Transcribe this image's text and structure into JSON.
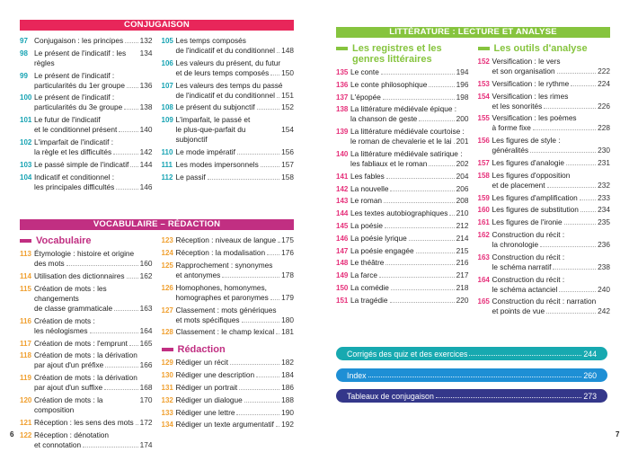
{
  "colors": {
    "conj": "#e8265a",
    "conj_num": "#17a3b3",
    "voc": "#c12f82",
    "voc_num": "#f0a030",
    "lit": "#86c43e",
    "lit_num": "#e6307a",
    "corriges": "#17a9b0",
    "index": "#1e8fd5",
    "tableaux": "#34378a"
  },
  "conjugaison": {
    "title": "CONJUGAISON",
    "left": [
      {
        "n": "97",
        "lines": [
          "Conjugaison : les principes"
        ],
        "p": "132"
      },
      {
        "n": "98",
        "lines": [
          "Le présent de l'indicatif : les règles"
        ],
        "p": "134"
      },
      {
        "n": "99",
        "lines": [
          "Le présent de l'indicatif :",
          "particularités du 1er groupe"
        ],
        "p": "136"
      },
      {
        "n": "100",
        "lines": [
          "Le présent de l'indicatif :",
          "particularités du 3e groupe"
        ],
        "p": "138"
      },
      {
        "n": "101",
        "lines": [
          "Le futur de l'indicatif",
          "et le conditionnel présent"
        ],
        "p": "140"
      },
      {
        "n": "102",
        "lines": [
          "L'imparfait de l'indicatif :",
          "la règle et les difficultés"
        ],
        "p": "142"
      },
      {
        "n": "103",
        "lines": [
          "Le passé simple de l'indicatif"
        ],
        "p": "144"
      },
      {
        "n": "104",
        "lines": [
          "Indicatif et conditionnel :",
          "les principales difficultés"
        ],
        "p": "146"
      }
    ],
    "right": [
      {
        "n": "105",
        "lines": [
          "Les temps composés",
          "de l'indicatif et du conditionnel"
        ],
        "p": "148"
      },
      {
        "n": "106",
        "lines": [
          "Les valeurs du présent, du futur",
          "et de leurs temps composés"
        ],
        "p": "150"
      },
      {
        "n": "107",
        "lines": [
          "Les valeurs des temps du passé",
          "de l'indicatif et du conditionnel"
        ],
        "p": "151"
      },
      {
        "n": "108",
        "lines": [
          "Le présent du subjonctif"
        ],
        "p": "152"
      },
      {
        "n": "109",
        "lines": [
          "L'imparfait, le passé et",
          "le plus-que-parfait du subjonctif"
        ],
        "p": "154"
      },
      {
        "n": "110",
        "lines": [
          "Le mode impératif"
        ],
        "p": "156"
      },
      {
        "n": "111",
        "lines": [
          "Les modes impersonnels"
        ],
        "p": "157"
      },
      {
        "n": "112",
        "lines": [
          "Le passif"
        ],
        "p": "158"
      }
    ]
  },
  "vocabulaire": {
    "title": "VOCABULAIRE – RÉDACTION",
    "sub1": "Vocabulaire",
    "sub2": "Rédaction",
    "left": [
      {
        "n": "113",
        "lines": [
          "Étymologie : histoire et origine",
          "des mots"
        ],
        "p": "160"
      },
      {
        "n": "114",
        "lines": [
          "Utilisation des dictionnaires"
        ],
        "p": "162"
      },
      {
        "n": "115",
        "lines": [
          "Création de mots : les changements",
          "de classe grammaticale"
        ],
        "p": "163"
      },
      {
        "n": "116",
        "lines": [
          "Création de mots :",
          "les néologismes"
        ],
        "p": "164"
      },
      {
        "n": "117",
        "lines": [
          "Création de mots : l'emprunt"
        ],
        "p": "165"
      },
      {
        "n": "118",
        "lines": [
          "Création de mots : la dérivation",
          "par ajout d'un préfixe"
        ],
        "p": "166"
      },
      {
        "n": "119",
        "lines": [
          "Création de mots : la dérivation",
          "par ajout d'un suffixe"
        ],
        "p": "168"
      },
      {
        "n": "120",
        "lines": [
          "Création de mots : la composition"
        ],
        "p": "170"
      },
      {
        "n": "121",
        "lines": [
          "Réception : les sens des mots"
        ],
        "p": "172"
      },
      {
        "n": "122",
        "lines": [
          "Réception : dénotation",
          "et connotation"
        ],
        "p": "174"
      }
    ],
    "right": [
      {
        "n": "123",
        "lines": [
          "Réception : niveaux de langue"
        ],
        "p": "175"
      },
      {
        "n": "124",
        "lines": [
          "Réception : la modalisation"
        ],
        "p": "176"
      },
      {
        "n": "125",
        "lines": [
          "Rapprochement : synonymes",
          "et antonymes"
        ],
        "p": "178"
      },
      {
        "n": "126",
        "lines": [
          "Homophones, homonymes,",
          "homographes et paronymes"
        ],
        "p": "179"
      },
      {
        "n": "127",
        "lines": [
          "Classement : mots génériques",
          "et mots spécifiques"
        ],
        "p": "180"
      },
      {
        "n": "128",
        "lines": [
          "Classement : le champ lexical"
        ],
        "p": "181"
      }
    ],
    "redaction": [
      {
        "n": "129",
        "lines": [
          "Rédiger un récit"
        ],
        "p": "182"
      },
      {
        "n": "130",
        "lines": [
          "Rédiger une description"
        ],
        "p": "184"
      },
      {
        "n": "131",
        "lines": [
          "Rédiger un portrait"
        ],
        "p": "186"
      },
      {
        "n": "132",
        "lines": [
          "Rédiger un dialogue"
        ],
        "p": "188"
      },
      {
        "n": "133",
        "lines": [
          "Rédiger une lettre"
        ],
        "p": "190"
      },
      {
        "n": "134",
        "lines": [
          "Rédiger un texte argumentatif"
        ],
        "p": "192"
      }
    ]
  },
  "litterature": {
    "title": "LITTÉRATURE : LECTURE ET ANALYSE",
    "sub1": "Les registres et les genres littéraires",
    "sub2": "Les outils d'analyse",
    "left": [
      {
        "n": "135",
        "lines": [
          "Le conte"
        ],
        "p": "194"
      },
      {
        "n": "136",
        "lines": [
          "Le conte philosophique"
        ],
        "p": "196"
      },
      {
        "n": "137",
        "lines": [
          "L'épopée"
        ],
        "p": "198"
      },
      {
        "n": "138",
        "lines": [
          "La littérature médiévale épique :",
          "la chanson de geste"
        ],
        "p": "200"
      },
      {
        "n": "139",
        "lines": [
          "La littérature médiévale courtoise :",
          "le roman de chevalerie et le lai"
        ],
        "p": "201"
      },
      {
        "n": "140",
        "lines": [
          "La littérature médiévale satirique :",
          "les fabliaux et le roman"
        ],
        "p": "202"
      },
      {
        "n": "141",
        "lines": [
          "Les fables"
        ],
        "p": "204"
      },
      {
        "n": "142",
        "lines": [
          "La nouvelle"
        ],
        "p": "206"
      },
      {
        "n": "143",
        "lines": [
          "Le roman"
        ],
        "p": "208"
      },
      {
        "n": "144",
        "lines": [
          "Les textes autobiographiques"
        ],
        "p": "210"
      },
      {
        "n": "145",
        "lines": [
          "La poésie"
        ],
        "p": "212"
      },
      {
        "n": "146",
        "lines": [
          "La poésie lyrique"
        ],
        "p": "214"
      },
      {
        "n": "147",
        "lines": [
          "La poésie engagée"
        ],
        "p": "215"
      },
      {
        "n": "148",
        "lines": [
          "Le théâtre"
        ],
        "p": "216"
      },
      {
        "n": "149",
        "lines": [
          "La farce"
        ],
        "p": "217"
      },
      {
        "n": "150",
        "lines": [
          "La comédie"
        ],
        "p": "218"
      },
      {
        "n": "151",
        "lines": [
          "La tragédie"
        ],
        "p": "220"
      }
    ],
    "right": [
      {
        "n": "152",
        "lines": [
          "Versification : le vers",
          "et son organisation"
        ],
        "p": "222"
      },
      {
        "n": "153",
        "lines": [
          "Versification : le rythme"
        ],
        "p": "224"
      },
      {
        "n": "154",
        "lines": [
          "Versification : les rimes",
          "et les sonorités"
        ],
        "p": "226"
      },
      {
        "n": "155",
        "lines": [
          "Versification : les poèmes",
          "à forme fixe"
        ],
        "p": "228"
      },
      {
        "n": "156",
        "lines": [
          "Les figures de style :",
          "généralités"
        ],
        "p": "230"
      },
      {
        "n": "157",
        "lines": [
          "Les figures d'analogie"
        ],
        "p": "231"
      },
      {
        "n": "158",
        "lines": [
          "Les figures d'opposition",
          "et de placement"
        ],
        "p": "232"
      },
      {
        "n": "159",
        "lines": [
          "Les figures d'amplification"
        ],
        "p": "233"
      },
      {
        "n": "160",
        "lines": [
          "Les figures de substitution"
        ],
        "p": "234"
      },
      {
        "n": "161",
        "lines": [
          "Les figures de l'ironie"
        ],
        "p": "235"
      },
      {
        "n": "162",
        "lines": [
          "Construction du récit :",
          "la chronologie"
        ],
        "p": "236"
      },
      {
        "n": "163",
        "lines": [
          "Construction du récit :",
          "le schéma narratif"
        ],
        "p": "238"
      },
      {
        "n": "164",
        "lines": [
          "Construction du récit :",
          "le schéma actanciel"
        ],
        "p": "240"
      },
      {
        "n": "165",
        "lines": [
          "Construction du récit : narration",
          "et points de vue"
        ],
        "p": "242"
      }
    ]
  },
  "annexes": [
    {
      "label": "Corrigés des quiz et des exercices",
      "p": "244"
    },
    {
      "label": "Index",
      "p": "260"
    },
    {
      "label": "Tableaux de conjugaison",
      "p": "273"
    }
  ],
  "page_left": "6",
  "page_right": "7"
}
